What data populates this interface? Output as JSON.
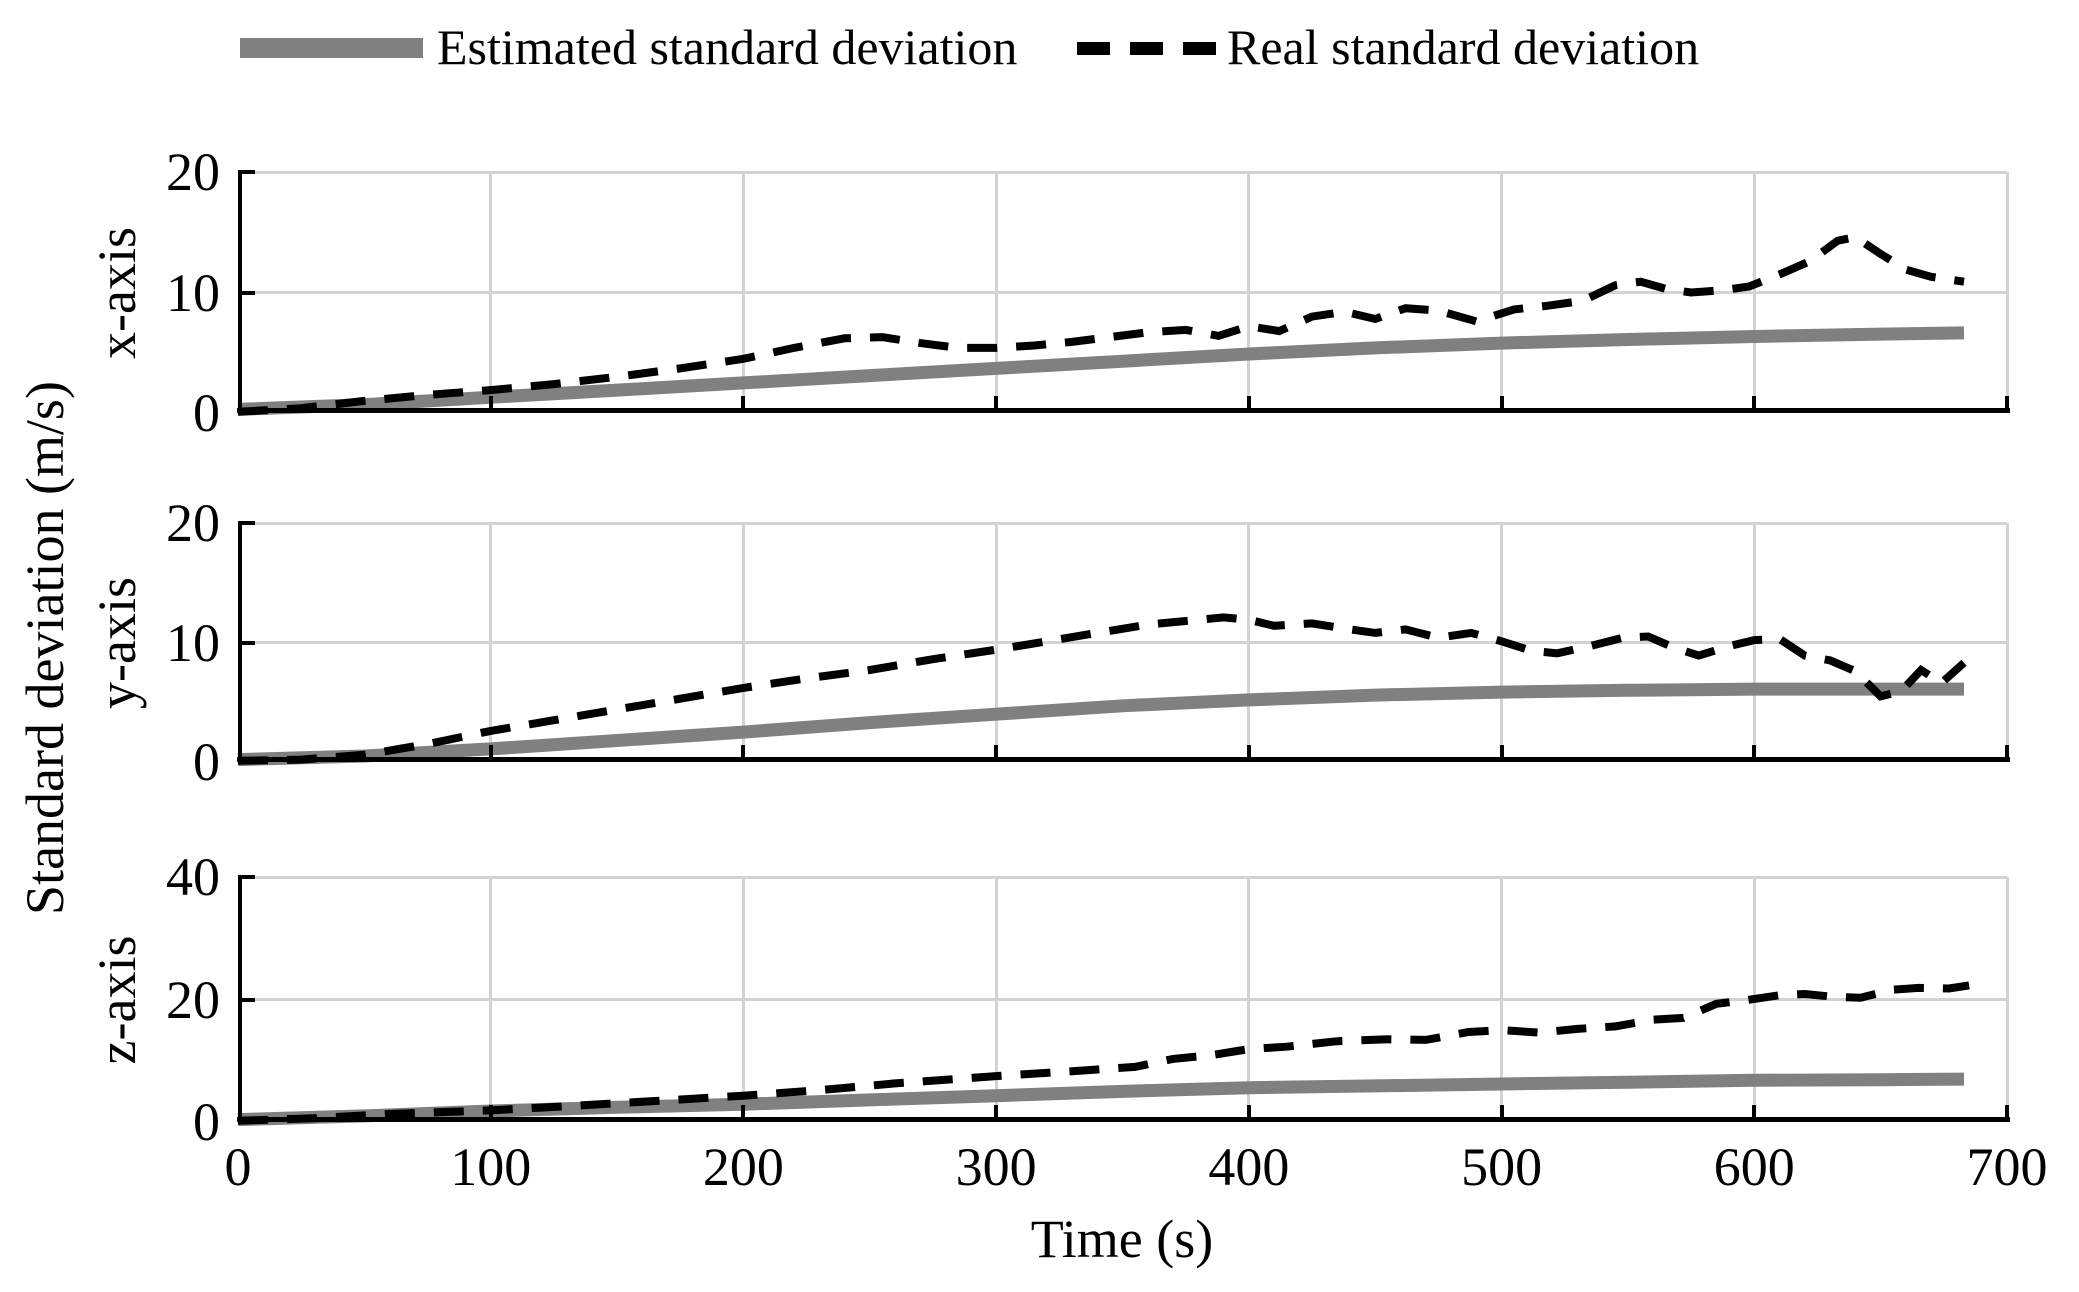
{
  "legend": {
    "items": [
      {
        "label": "Estimated standard deviation",
        "style": "solid"
      },
      {
        "label": "Real standard deviation",
        "style": "dashed"
      }
    ]
  },
  "colors": {
    "estimated": "#808080",
    "real": "#000000",
    "grid": "#d3d3d3",
    "axis": "#000000",
    "background": "#ffffff"
  },
  "axes": {
    "xlabel": "Time (s)",
    "ylabel": "Standard deviation (m/s)",
    "xlim": [
      0,
      700
    ],
    "x_tick_values": [
      0,
      100,
      200,
      300,
      400,
      500,
      600,
      700
    ],
    "x_tick_labels": [
      "0",
      "100",
      "200",
      "300",
      "400",
      "500",
      "600",
      "700"
    ],
    "grid": true,
    "legend_position": "top"
  },
  "chart_data": [
    {
      "type": "line",
      "row_label": "x-axis",
      "ylim": [
        0,
        20
      ],
      "y_tick_values": [
        0,
        10,
        20
      ],
      "y_tick_labels": [
        "0",
        "10",
        "20"
      ],
      "series": [
        {
          "name": "Estimated standard deviation",
          "style": "solid",
          "color": "#808080",
          "x": [
            0,
            50,
            100,
            150,
            200,
            250,
            300,
            350,
            400,
            450,
            500,
            550,
            600,
            650,
            683
          ],
          "y": [
            0.3,
            0.7,
            1.3,
            1.9,
            2.5,
            3.1,
            3.7,
            4.3,
            4.9,
            5.4,
            5.8,
            6.1,
            6.35,
            6.55,
            6.65
          ]
        },
        {
          "name": "Real standard deviation",
          "style": "dashed",
          "color": "#000000",
          "x": [
            0,
            25,
            50,
            75,
            100,
            125,
            150,
            175,
            200,
            220,
            240,
            255,
            270,
            285,
            300,
            315,
            330,
            345,
            360,
            375,
            388,
            400,
            412,
            425,
            438,
            450,
            462,
            475,
            490,
            505,
            518,
            532,
            545,
            555,
            565,
            575,
            588,
            598,
            610,
            622,
            633,
            640,
            650,
            660,
            670,
            683
          ],
          "y": [
            0.1,
            0.4,
            1.0,
            1.5,
            1.9,
            2.4,
            3.0,
            3.7,
            4.5,
            5.4,
            6.2,
            6.3,
            5.8,
            5.4,
            5.4,
            5.6,
            5.9,
            6.3,
            6.7,
            6.9,
            6.4,
            7.2,
            6.8,
            8.0,
            8.4,
            7.8,
            8.7,
            8.5,
            7.6,
            8.6,
            8.9,
            9.3,
            10.6,
            10.9,
            10.3,
            10.0,
            10.2,
            10.5,
            11.5,
            12.6,
            14.3,
            14.6,
            13.2,
            11.9,
            11.3,
            10.9
          ]
        }
      ]
    },
    {
      "type": "line",
      "row_label": "y-axis",
      "ylim": [
        0,
        20
      ],
      "y_tick_values": [
        0,
        10,
        20
      ],
      "y_tick_labels": [
        "0",
        "10",
        "20"
      ],
      "series": [
        {
          "name": "Estimated standard deviation",
          "style": "solid",
          "color": "#808080",
          "x": [
            0,
            50,
            100,
            150,
            200,
            250,
            300,
            350,
            400,
            450,
            500,
            550,
            600,
            650,
            683
          ],
          "y": [
            0.2,
            0.5,
            1.1,
            1.8,
            2.5,
            3.3,
            4.0,
            4.7,
            5.2,
            5.6,
            5.85,
            6.0,
            6.1,
            6.1,
            6.1
          ]
        },
        {
          "name": "Real standard deviation",
          "style": "dashed",
          "color": "#000000",
          "x": [
            0,
            25,
            50,
            75,
            100,
            125,
            150,
            175,
            200,
            225,
            250,
            275,
            300,
            320,
            340,
            360,
            375,
            390,
            400,
            410,
            425,
            440,
            450,
            462,
            475,
            488,
            500,
            512,
            522,
            535,
            548,
            558,
            568,
            578,
            590,
            600,
            610,
            620,
            630,
            640,
            650,
            658,
            666,
            674,
            683
          ],
          "y": [
            0.1,
            0.2,
            0.6,
            1.5,
            2.6,
            3.5,
            4.4,
            5.3,
            6.2,
            7.0,
            7.7,
            8.6,
            9.4,
            10.1,
            10.8,
            11.5,
            11.8,
            12.1,
            11.9,
            11.4,
            11.6,
            11.1,
            10.8,
            11.1,
            10.4,
            10.8,
            10.1,
            9.3,
            9.1,
            9.7,
            10.4,
            10.5,
            9.6,
            8.9,
            9.7,
            10.2,
            10.3,
            8.9,
            8.5,
            7.6,
            5.5,
            5.9,
            7.7,
            6.6,
            8.3
          ]
        }
      ]
    },
    {
      "type": "line",
      "row_label": "z-axis",
      "ylim": [
        0,
        40
      ],
      "y_tick_values": [
        0,
        20,
        40
      ],
      "y_tick_labels": [
        "0",
        "20",
        "40"
      ],
      "series": [
        {
          "name": "Estimated standard deviation",
          "style": "solid",
          "color": "#808080",
          "x": [
            0,
            50,
            100,
            150,
            200,
            250,
            300,
            350,
            400,
            450,
            500,
            550,
            600,
            650,
            683
          ],
          "y": [
            0.4,
            1.0,
            1.8,
            2.4,
            2.9,
            3.6,
            4.3,
            5.0,
            5.6,
            5.9,
            6.2,
            6.5,
            6.8,
            6.9,
            7.0
          ]
        },
        {
          "name": "Real standard deviation",
          "style": "dashed",
          "color": "#000000",
          "x": [
            0,
            30,
            60,
            100,
            140,
            180,
            200,
            230,
            260,
            300,
            330,
            355,
            370,
            385,
            400,
            415,
            435,
            455,
            470,
            487,
            500,
            515,
            530,
            545,
            560,
            572,
            585,
            597,
            610,
            620,
            632,
            642,
            655,
            665,
            677,
            685
          ],
          "y": [
            0.2,
            0.6,
            1.3,
            1.9,
            2.8,
            3.8,
            4.3,
            5.2,
            6.3,
            7.5,
            8.3,
            9.0,
            10.3,
            10.9,
            11.9,
            12.3,
            13.2,
            13.5,
            13.4,
            14.7,
            15.0,
            14.6,
            15.2,
            15.6,
            16.7,
            17.0,
            19.3,
            19.9,
            20.7,
            20.9,
            20.4,
            20.3,
            21.6,
            21.9,
            21.8,
            22.3
          ]
        }
      ]
    }
  ]
}
